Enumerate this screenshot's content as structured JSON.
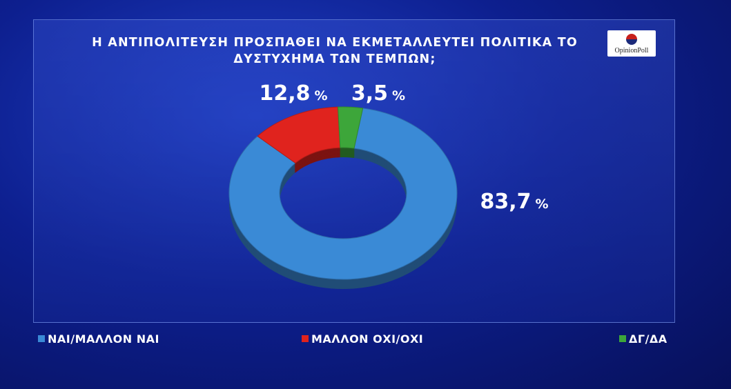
{
  "chart_data": {
    "type": "pie",
    "donut": true,
    "title": "Η ΑΝΤΙΠΟΛΙΤΕΥΣΗ ΠΡΟΣΠΑΘΕΙ ΝΑ ΕΚΜΕΤΑΛΛΕΥΤΕΙ ΠΟΛΙΤΙΚΑ ΤΟ ΔΥΣΤΥΧΗΜΑ ΤΩΝ ΤΕΜΠΩΝ;",
    "source": "OpinionPoll",
    "categories": [
      "ΝΑΙ/ΜΑΛΛΟΝ ΝΑΙ",
      "ΜΑΛΛΟΝ ΟΧΙ/ΟΧΙ",
      "ΔΓ/ΔΑ"
    ],
    "values": [
      83.7,
      12.8,
      3.5
    ],
    "value_labels": [
      "83,7 %",
      "12,8 %",
      "3,5 %"
    ],
    "colors": [
      "#3a8ad6",
      "#e0231e",
      "#3da63a"
    ]
  }
}
